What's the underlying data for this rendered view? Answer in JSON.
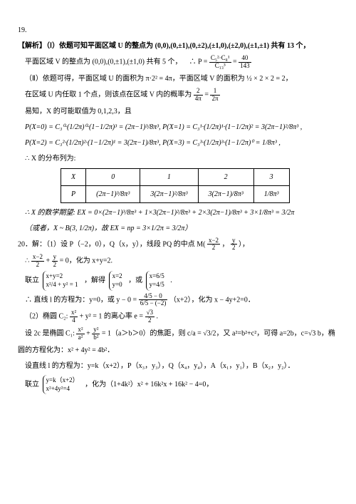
{
  "q19_num": "19.",
  "sol19_l1": "【解析】（Ⅰ）依题可知平面区域 U 的整点为 (0,0),(0,±1),(0,±2),(±1,0),(±2,0),(±1,±1) 共有 13 个，",
  "sol19_l2": "平面区域 V 的整点为 (0,0),(0,±1),(±1,0) 共有 5 个，",
  "sol19_l2b": "∴ P = ",
  "sol19_frac1_n": "C₅²·C₈¹",
  "sol19_frac1_d": "C₁₃³",
  "sol19_eq1": " = ",
  "sol19_frac2_n": "40",
  "sol19_frac2_d": "143",
  "sol19_l3": "（Ⅱ）依题可得，平面区域 U 的面积为 π·2² = 4π，平面区域 V 的面积为 ½ × 2 × 2 = 2，",
  "sol19_l4": "在区域 U 内任取 1 个点，则该点在区域 V 内的概率为 ",
  "sol19_frac3_n": "2",
  "sol19_frac3_d": "4π",
  "sol19_eq2": " = ",
  "sol19_frac4_n": "1",
  "sol19_frac4_d": "2π",
  "sol19_l5": "易知，X 的可能取值为 0,1,2,3，且",
  "sol19_px0": "P(X=0) = C₃⁰·(1/2π)⁰·(1−1/2π)³ = (2π−1)³/8π³,  P(X=1) = C₃¹·(1/2π)¹·(1−1/2π)² = 3(2π−1)²/8π³ ,",
  "sol19_px2": "P(X=2) = C₃²·(1/2π)²·(1−1/2π)¹ = 3(2π−1)/8π³,  P(X=3) = C₃³·(1/2π)³·(1−1/2π)⁰ = 1/8π³ ,",
  "sol19_l6": "∴ X 的分布列为:",
  "table_h": [
    "X",
    "0",
    "1",
    "2",
    "3"
  ],
  "table_r": [
    "P",
    "(2π−1)³/8π³",
    "3(2π−1)²/8π³",
    "3(2π−1)/8π³",
    "1/8π³"
  ],
  "sol19_ex": "∴ X 的数学期望: EX = 0×(2π−1)³/8π³ + 1×3(2π−1)²/8π³ + 2×3(2π−1)/8π³ + 3×1/8π³ = 3/2π",
  "sol19_or": "（或者，X ~ B(3, 1/2π)，故 EX = np = 3×1/2π = 3/2π）",
  "q20_l1": "20．解：（1）设 P（−2，0），Q（x，y），线段 PQ 的中点 M(",
  "q20_frac_m1": "x−2",
  "q20_frac_m1d": "2",
  "q20_mid": "，",
  "q20_frac_m2": "y",
  "q20_frac_m2d": "2",
  "q20_l1e": "），",
  "q20_l2a": "∴ ",
  "q20_l2_n1": "x−2",
  "q20_l2_d1": "2",
  "q20_l2b": " + ",
  "q20_l2_n2": "y",
  "q20_l2_d2": "2",
  "q20_l2c": " = 0，化为 x+y=2.",
  "q20_l3_pre": "联立 ",
  "q20_sys1a": "x+y=2",
  "q20_sys1b": "x²/4 + y² = 1",
  "q20_l3_mid": "，解得 ",
  "q20_sys2a": "x=2",
  "q20_sys2b": "y=0",
  "q20_l3_or": "，或 ",
  "q20_sys3a": "x=6/5",
  "q20_sys3b": "y=4/5",
  "q20_l3_end": " .",
  "q20_l4a": "∴ 直线 l 的方程为：y=0，或 y − 0 = ",
  "q20_l4_n": "4/5 − 0",
  "q20_l4_d": "6/5 − (−2)",
  "q20_l4b": "（x+2），化为 x − 4y+2=0．",
  "q20_l5a": "（2）椭圆 C₂: ",
  "q20_l5_n": "x²",
  "q20_l5_d": "4",
  "q20_l5b": " + y² = 1 的离心率 e = ",
  "q20_l5_en": "√3",
  "q20_l5_ed": "2",
  "q20_l5c": ".",
  "q20_l6a": "设 2c 是椭圆 C₁: ",
  "q20_l6_n1": "x²",
  "q20_l6_d1": "a²",
  "q20_l6_p": " + ",
  "q20_l6_n2": "y²",
  "q20_l6_d2": "b²",
  "q20_l6b": " = 1（a＞b＞0）的焦距，则 c/a = √3/2，又 a²=b²+c²，可得 a=2b，c=√3 b，椭",
  "q20_l7": "圆的方程化为：x² + 4y² = 4b²．",
  "q20_l8": "设直线 l 的方程为：y=k（x+2），P（x₃，y₃），Q（x₄，y₄），A（x₁，y₁），B（x₂，y₂）．",
  "q20_l9a": "联立 ",
  "q20_sys4a": "y=k（x+2）",
  "q20_sys4b": "x²+4y²=4",
  "q20_l9b": "，化为（1+4k²）x² + 16k²x + 16k² − 4=0，"
}
